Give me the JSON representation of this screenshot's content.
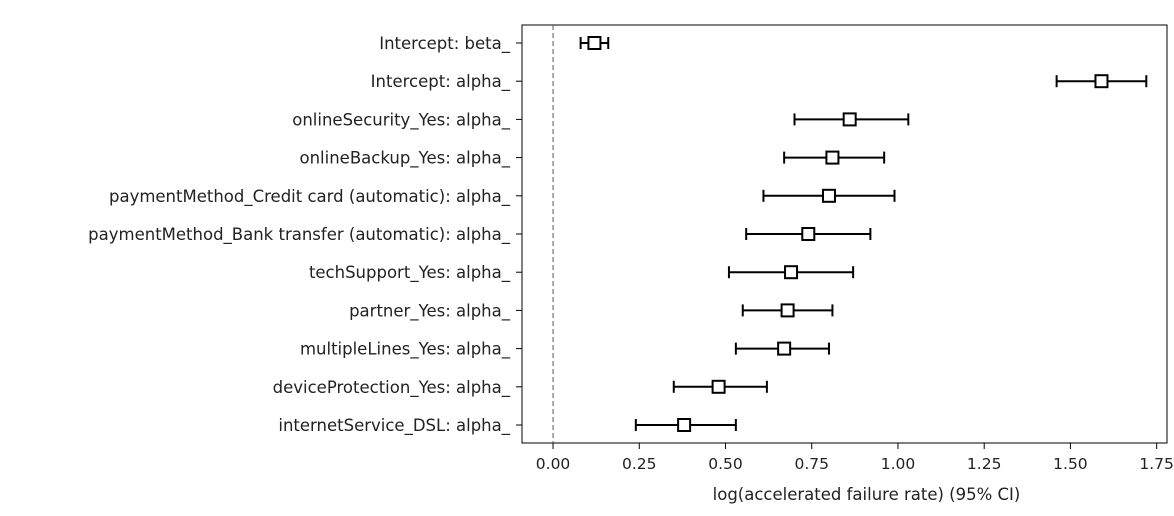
{
  "chart_data": {
    "type": "forest",
    "title": "",
    "xlabel": "log(accelerated failure rate) (95% CI)",
    "ylabel": "",
    "xlim": [
      -0.09,
      1.78
    ],
    "x_ticks": [
      0.0,
      0.25,
      0.5,
      0.75,
      1.0,
      1.25,
      1.5,
      1.75
    ],
    "x_tick_labels": [
      "0.00",
      "0.25",
      "0.50",
      "0.75",
      "1.00",
      "1.25",
      "1.50",
      "1.75"
    ],
    "reference_line": 0,
    "grid": false,
    "rows": [
      {
        "label": "Intercept: beta_",
        "estimate": 0.12,
        "lower": 0.08,
        "upper": 0.16
      },
      {
        "label": "Intercept: alpha_",
        "estimate": 1.59,
        "lower": 1.46,
        "upper": 1.72
      },
      {
        "label": "onlineSecurity_Yes: alpha_",
        "estimate": 0.86,
        "lower": 0.7,
        "upper": 1.03
      },
      {
        "label": "onlineBackup_Yes: alpha_",
        "estimate": 0.81,
        "lower": 0.67,
        "upper": 0.96
      },
      {
        "label": "paymentMethod_Credit card (automatic): alpha_",
        "estimate": 0.8,
        "lower": 0.61,
        "upper": 0.99
      },
      {
        "label": "paymentMethod_Bank transfer (automatic): alpha_",
        "estimate": 0.74,
        "lower": 0.56,
        "upper": 0.92
      },
      {
        "label": "techSupport_Yes: alpha_",
        "estimate": 0.69,
        "lower": 0.51,
        "upper": 0.87
      },
      {
        "label": "partner_Yes: alpha_",
        "estimate": 0.68,
        "lower": 0.55,
        "upper": 0.81
      },
      {
        "label": "multipleLines_Yes: alpha_",
        "estimate": 0.67,
        "lower": 0.53,
        "upper": 0.8
      },
      {
        "label": "deviceProtection_Yes: alpha_",
        "estimate": 0.48,
        "lower": 0.35,
        "upper": 0.62
      },
      {
        "label": "internetService_DSL: alpha_",
        "estimate": 0.38,
        "lower": 0.24,
        "upper": 0.53
      }
    ]
  }
}
